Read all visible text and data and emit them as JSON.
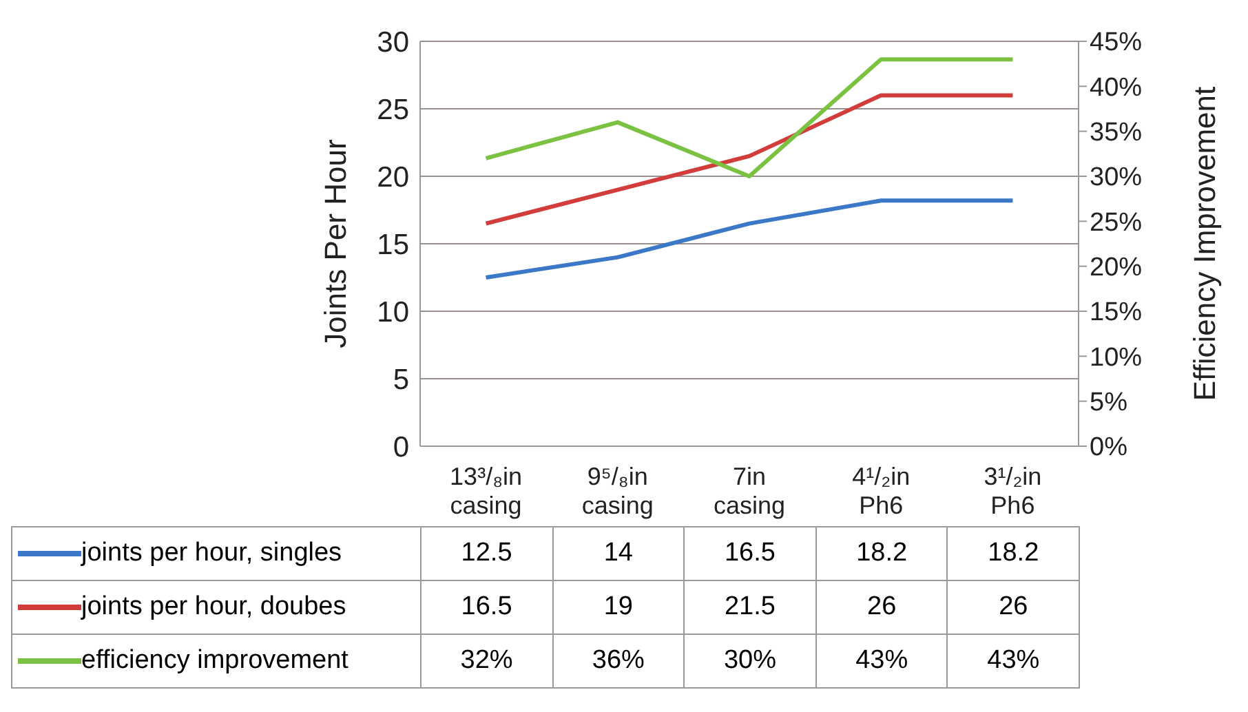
{
  "chart_data": {
    "type": "line",
    "ylabel": "Joints Per Hour",
    "y2label": "Efficiency Improvement",
    "categories": [
      "13³/₈in casing",
      "9⁵/₈in casing",
      "7in casing",
      "4¹/₂in Ph6",
      "3¹/₂in Ph6"
    ],
    "series": [
      {
        "name": "joints per hour, singles",
        "color": "#3b78c8",
        "values": [
          12.5,
          14,
          16.5,
          18.2,
          18.2
        ]
      },
      {
        "name": "joints per hour, doubes",
        "color": "#d23c3a",
        "values": [
          16.5,
          19,
          21.5,
          26,
          26
        ]
      },
      {
        "name": "efficiency improvement",
        "color": "#7cc242",
        "values": [
          32,
          36,
          30,
          43,
          43
        ],
        "axis": "y2",
        "value_labels": [
          "32%",
          "36%",
          "30%",
          "43%",
          "43%"
        ]
      }
    ],
    "ylim": [
      0,
      30
    ],
    "yticks": [
      0,
      5,
      10,
      15,
      20,
      25,
      30
    ],
    "y2lim": [
      0,
      45
    ],
    "y2ticks": [
      {
        "value": 0,
        "label": "0%"
      },
      {
        "value": 5,
        "label": "5%"
      },
      {
        "value": 10,
        "label": "10%"
      },
      {
        "value": 15,
        "label": "15%"
      },
      {
        "value": 20,
        "label": "20%"
      },
      {
        "value": 25,
        "label": "25%"
      },
      {
        "value": 30,
        "label": "30%"
      },
      {
        "value": 35,
        "label": "35%"
      },
      {
        "value": 40,
        "label": "40%"
      },
      {
        "value": 45,
        "label": "45%"
      }
    ],
    "grid": "y",
    "legend": "bottom",
    "data_labels": true,
    "marker": "none",
    "line_style": "solid"
  }
}
